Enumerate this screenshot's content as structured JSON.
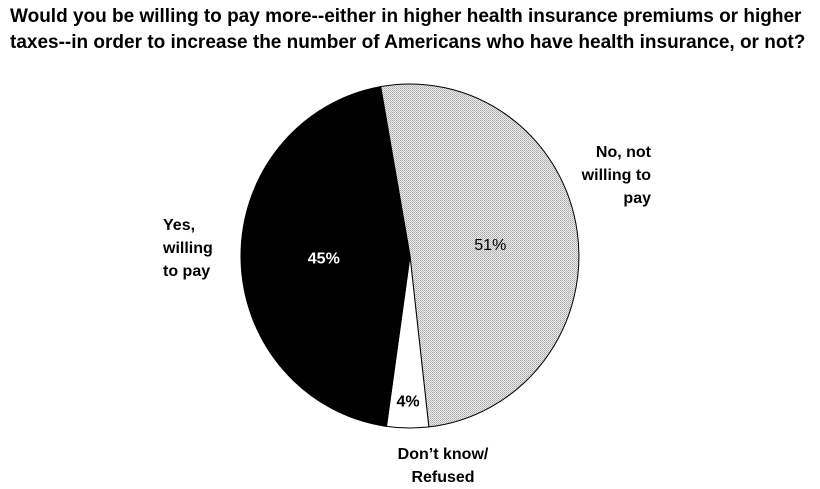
{
  "chart_data": {
    "type": "pie",
    "title": "Would you be willing to pay more--either in higher health insurance premiums or higher taxes--in order to increase the number of Americans who have health insurance, or not?",
    "start_angle_deg": -10,
    "direction": "clockwise",
    "slices": [
      {
        "label": "No, not\nwilling to\npay",
        "value": 51,
        "value_label": "51%",
        "fill": "#d2d2d2",
        "label_color": "#000000"
      },
      {
        "label": "Don’t know/\nRefused",
        "value": 4,
        "value_label": "4%",
        "fill": "#ffffff",
        "label_color": "#000000"
      },
      {
        "label": "Yes,\nwilling\nto pay",
        "value": 45,
        "value_label": "45%",
        "fill": "#000000",
        "label_color": "#ffffff"
      }
    ]
  }
}
